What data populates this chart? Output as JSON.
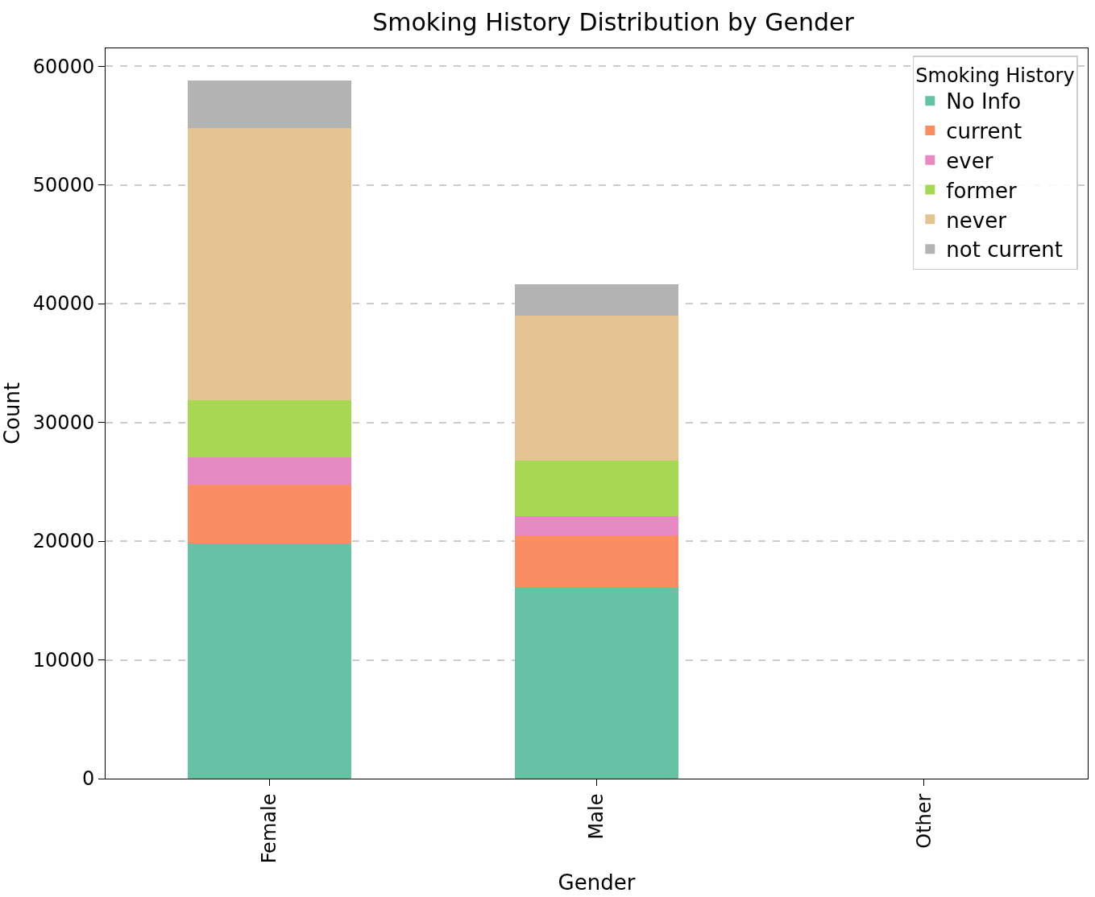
{
  "chart_data": {
    "type": "bar",
    "stacked": true,
    "title": "Smoking History Distribution by Gender",
    "xlabel": "Gender",
    "ylabel": "Count",
    "legend_title": "Smoking History",
    "categories": [
      "Female",
      "Male",
      "Other"
    ],
    "series": [
      {
        "name": "No Info",
        "color": "#66c2a5",
        "values": [
          19800,
          16100,
          0
        ]
      },
      {
        "name": "current",
        "color": "#fc8d62",
        "values": [
          4950,
          4350,
          0
        ]
      },
      {
        "name": "ever",
        "color": "#e78ac3",
        "values": [
          2330,
          1650,
          0
        ]
      },
      {
        "name": "former",
        "color": "#a6d854",
        "values": [
          4820,
          4690,
          0
        ]
      },
      {
        "name": "never",
        "color": "#e5c494",
        "values": [
          22900,
          12170,
          0
        ]
      },
      {
        "name": "not current",
        "color": "#b3b3b3",
        "values": [
          4000,
          2640,
          0
        ]
      }
    ],
    "ylim": [
      0,
      61500
    ],
    "yticks": [
      0,
      10000,
      20000,
      30000,
      40000,
      50000,
      60000
    ],
    "grid": "y",
    "legend": "top right"
  }
}
